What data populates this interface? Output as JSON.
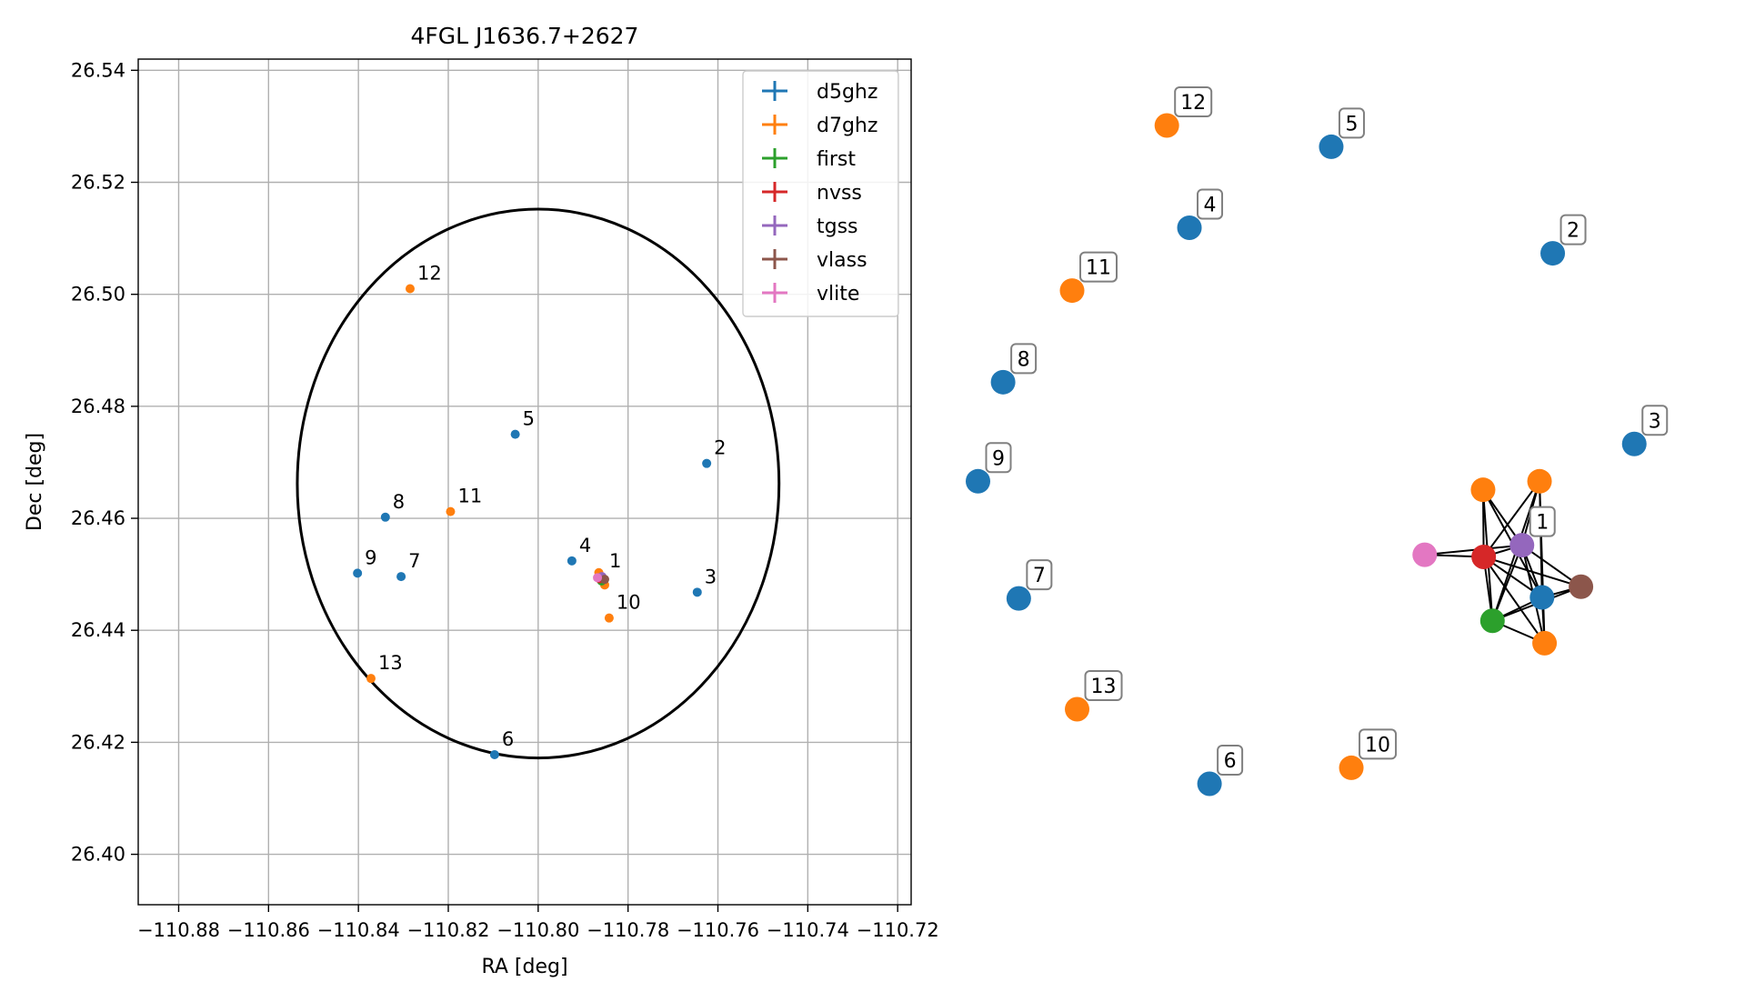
{
  "colors": {
    "d5ghz": "#1f77b4",
    "d7ghz": "#ff7f0e",
    "first": "#2ca02c",
    "nvss": "#d62728",
    "tgss": "#9467bd",
    "vlass": "#8c564b",
    "vlite": "#e377c2"
  },
  "chart_data": [
    {
      "type": "scatter",
      "title": "4FGL J1636.7+2627",
      "xlabel": "RA [deg]",
      "ylabel": "Dec [deg]",
      "xlim": [
        -110.889,
        -110.717
      ],
      "ylim": [
        26.391,
        26.542
      ],
      "grid": true,
      "legend_position": "top-right",
      "xticks": [
        -110.88,
        -110.86,
        -110.84,
        -110.82,
        -110.8,
        -110.78,
        -110.76,
        -110.74,
        -110.72
      ],
      "xtick_labels": [
        "−110.88",
        "−110.86",
        "−110.84",
        "−110.82",
        "−110.80",
        "−110.78",
        "−110.76",
        "−110.74",
        "−110.72"
      ],
      "yticks": [
        26.4,
        26.42,
        26.44,
        26.46,
        26.48,
        26.5,
        26.52,
        26.54
      ],
      "ytick_labels": [
        "26.40",
        "26.42",
        "26.44",
        "26.46",
        "26.48",
        "26.50",
        "26.52",
        "26.54"
      ],
      "ellipse": {
        "center": [
          -110.8,
          26.4662
        ],
        "semi_axis_ra": 0.0536,
        "semi_axis_dec": 0.049
      },
      "series": [
        {
          "name": "d5ghz",
          "points": [
            {
              "label": "2",
              "x": -110.7625,
              "y": 26.4698
            },
            {
              "label": "3",
              "x": -110.7646,
              "y": 26.4468
            },
            {
              "label": "4",
              "x": -110.7925,
              "y": 26.4524
            },
            {
              "label": "5",
              "x": -110.8051,
              "y": 26.475
            },
            {
              "label": "6",
              "x": -110.8097,
              "y": 26.4178
            },
            {
              "label": "7",
              "x": -110.8305,
              "y": 26.4496
            },
            {
              "label": "8",
              "x": -110.834,
              "y": 26.4602
            },
            {
              "label": "9",
              "x": -110.8402,
              "y": 26.4502
            },
            {
              "label": "",
              "x": -110.7862,
              "y": 26.4492
            }
          ]
        },
        {
          "name": "d7ghz",
          "points": [
            {
              "label": "10",
              "x": -110.7842,
              "y": 26.4422
            },
            {
              "label": "11",
              "x": -110.8195,
              "y": 26.4612
            },
            {
              "label": "12",
              "x": -110.8285,
              "y": 26.501
            },
            {
              "label": "13",
              "x": -110.8372,
              "y": 26.4314
            },
            {
              "label": "",
              "x": -110.7865,
              "y": 26.4503
            },
            {
              "label": "",
              "x": -110.7852,
              "y": 26.4481
            }
          ]
        },
        {
          "name": "first",
          "points": [
            {
              "label": "",
              "x": -110.7859,
              "y": 26.4488
            }
          ]
        },
        {
          "name": "nvss",
          "points": [
            {
              "label": "",
              "x": -110.7863,
              "y": 26.4492
            }
          ]
        },
        {
          "name": "tgss",
          "points": [
            {
              "label": "1",
              "x": -110.7858,
              "y": 26.4496
            }
          ]
        },
        {
          "name": "vlass",
          "points": [
            {
              "label": "",
              "x": -110.7852,
              "y": 26.4491
            }
          ]
        },
        {
          "name": "vlite",
          "points": [
            {
              "label": "",
              "x": -110.7868,
              "y": 26.4494
            }
          ]
        }
      ]
    },
    {
      "type": "network",
      "nodes": [
        {
          "label": "12",
          "series": "d7ghz",
          "x": 0.251,
          "y": 0.881
        },
        {
          "label": "5",
          "series": "d5ghz",
          "x": 0.513,
          "y": 0.861
        },
        {
          "label": "4",
          "series": "d5ghz",
          "x": 0.287,
          "y": 0.785
        },
        {
          "label": "2",
          "series": "d5ghz",
          "x": 0.866,
          "y": 0.761
        },
        {
          "label": "11",
          "series": "d7ghz",
          "x": 0.1,
          "y": 0.726
        },
        {
          "label": "8",
          "series": "d5ghz",
          "x": -0.01,
          "y": 0.64
        },
        {
          "label": "3",
          "series": "d5ghz",
          "x": 0.996,
          "y": 0.582
        },
        {
          "label": "9",
          "series": "d5ghz",
          "x": -0.05,
          "y": 0.547
        },
        {
          "label": "",
          "series": "d7ghz",
          "x": 0.755,
          "y": 0.539
        },
        {
          "label": "",
          "series": "d7ghz",
          "x": 0.845,
          "y": 0.547
        },
        {
          "label": "1",
          "series": "tgss",
          "x": 0.817,
          "y": 0.487
        },
        {
          "label": "",
          "series": "vlite",
          "x": 0.662,
          "y": 0.478
        },
        {
          "label": "",
          "series": "nvss",
          "x": 0.756,
          "y": 0.476
        },
        {
          "label": "",
          "series": "vlass",
          "x": 0.911,
          "y": 0.448
        },
        {
          "label": "",
          "series": "d5ghz",
          "x": 0.849,
          "y": 0.438
        },
        {
          "label": "7",
          "series": "d5ghz",
          "x": 0.015,
          "y": 0.437
        },
        {
          "label": "",
          "series": "first",
          "x": 0.77,
          "y": 0.416
        },
        {
          "label": "",
          "series": "d7ghz",
          "x": 0.853,
          "y": 0.395
        },
        {
          "label": "13",
          "series": "d7ghz",
          "x": 0.108,
          "y": 0.333
        },
        {
          "label": "10",
          "series": "d7ghz",
          "x": 0.545,
          "y": 0.278
        },
        {
          "label": "6",
          "series": "d5ghz",
          "x": 0.319,
          "y": 0.263
        }
      ],
      "edges": [
        [
          8,
          12
        ],
        [
          8,
          14
        ],
        [
          8,
          16
        ],
        [
          9,
          10
        ],
        [
          9,
          12
        ],
        [
          9,
          14
        ],
        [
          9,
          16
        ],
        [
          9,
          17
        ],
        [
          10,
          12
        ],
        [
          10,
          13
        ],
        [
          10,
          14
        ],
        [
          10,
          16
        ],
        [
          10,
          17
        ],
        [
          11,
          12
        ],
        [
          11,
          10
        ],
        [
          12,
          13
        ],
        [
          12,
          14
        ],
        [
          12,
          16
        ],
        [
          12,
          17
        ],
        [
          13,
          14
        ],
        [
          13,
          16
        ],
        [
          14,
          16
        ],
        [
          14,
          17
        ],
        [
          16,
          17
        ],
        [
          8,
          10
        ]
      ]
    }
  ]
}
